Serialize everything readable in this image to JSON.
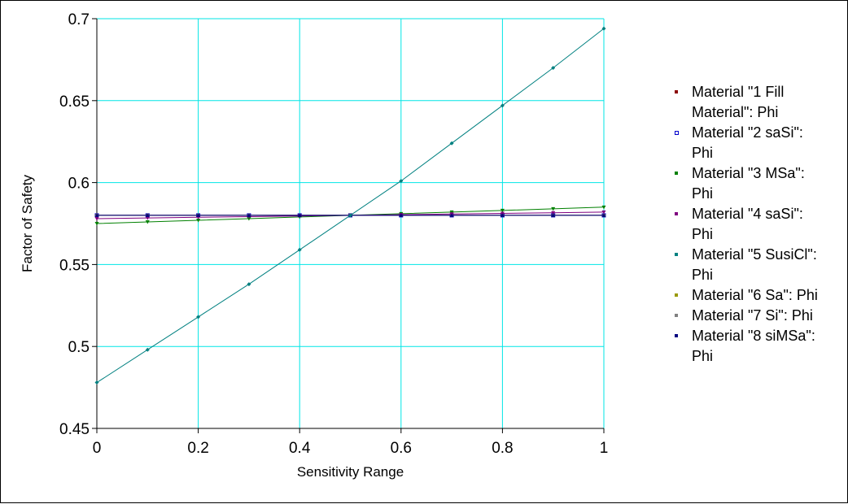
{
  "chart_data": {
    "type": "line",
    "title": "",
    "xlabel": "Sensitivity Range",
    "ylabel": "Factor of Safety",
    "xlim": [
      0,
      1
    ],
    "ylim": [
      0.45,
      0.7
    ],
    "x_ticks": [
      "0",
      "0.2",
      "0.4",
      "0.6",
      "0.8",
      "1"
    ],
    "y_ticks": [
      "0.45",
      "0.5",
      "0.55",
      "0.6",
      "0.65",
      "0.7"
    ],
    "grid": true,
    "grid_color": "#00e6e6",
    "legend_position": "right",
    "x": [
      0,
      0.1,
      0.2,
      0.3,
      0.4,
      0.5,
      0.6,
      0.7,
      0.8,
      0.9,
      1.0
    ],
    "series": [
      {
        "name": "Material \"1 Fill Material\": Phi",
        "color": "#8b0000",
        "marker": "square",
        "values": [
          0.58,
          0.58,
          0.58,
          0.58,
          0.58,
          0.58,
          0.58,
          0.58,
          0.58,
          0.58,
          0.58
        ]
      },
      {
        "name": "Material \"2 saSi\": Phi",
        "color": "#0000cc",
        "marker": "square-open",
        "values": [
          0.58,
          0.58,
          0.58,
          0.58,
          0.58,
          0.58,
          0.58,
          0.58,
          0.58,
          0.58,
          0.58
        ]
      },
      {
        "name": "Material \"3 MSa\": Phi",
        "color": "#008000",
        "marker": "triangle-down",
        "values": [
          0.575,
          0.576,
          0.577,
          0.578,
          0.579,
          0.58,
          0.581,
          0.582,
          0.583,
          0.584,
          0.585
        ]
      },
      {
        "name": "Material \"4 saSi\": Phi",
        "color": "#800080",
        "marker": "triangle-down",
        "values": [
          0.578,
          0.5784,
          0.5788,
          0.5792,
          0.5796,
          0.58,
          0.5804,
          0.5808,
          0.5812,
          0.5816,
          0.582
        ]
      },
      {
        "name": "Material \"5 SusiCl\": Phi",
        "color": "#008080",
        "marker": "diamond",
        "values": [
          0.478,
          0.498,
          0.518,
          0.538,
          0.559,
          0.58,
          0.601,
          0.624,
          0.647,
          0.67,
          0.694
        ]
      },
      {
        "name": "Material \"6 Sa\": Phi",
        "color": "#999900",
        "marker": "diamond",
        "values": [
          0.58,
          0.58,
          0.58,
          0.58,
          0.58,
          0.58,
          0.58,
          0.58,
          0.58,
          0.58,
          0.58
        ]
      },
      {
        "name": "Material \"7 Si\": Phi",
        "color": "#808080",
        "marker": "triangle",
        "values": [
          0.58,
          0.58,
          0.58,
          0.58,
          0.58,
          0.58,
          0.58,
          0.58,
          0.58,
          0.58,
          0.58
        ]
      },
      {
        "name": "Material \"8 siMSa\": Phi",
        "color": "#000080",
        "marker": "triangle",
        "values": [
          0.58,
          0.58,
          0.58,
          0.58,
          0.58,
          0.58,
          0.58,
          0.58,
          0.58,
          0.58,
          0.58
        ]
      }
    ]
  },
  "legend": {
    "lines": [
      [
        "Material \"1 Fill",
        "Material\": Phi"
      ],
      [
        "Material \"2 saSi\":",
        "Phi"
      ],
      [
        "Material \"3 MSa\":",
        "Phi"
      ],
      [
        "Material \"4 saSi\":",
        "Phi"
      ],
      [
        "Material \"5 SusiCl\":",
        "Phi"
      ],
      [
        "Material \"6 Sa\": Phi"
      ],
      [
        "Material \"7 Si\": Phi"
      ],
      [
        "Material \"8 siMSa\":",
        "Phi"
      ]
    ]
  }
}
